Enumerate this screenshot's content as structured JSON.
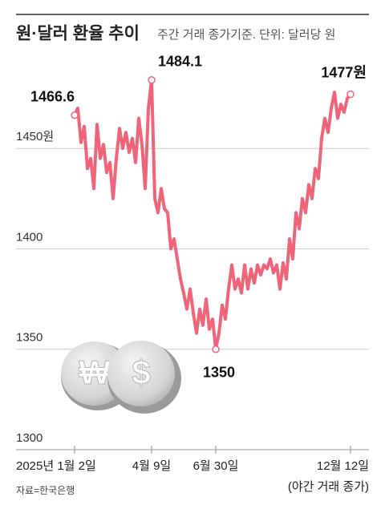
{
  "chart_data": {
    "type": "line",
    "title": "원·달러 환율 추이",
    "subtitle": "주간 거래 종가기준. 단위: 달러당 원",
    "categories": [
      "2025년 1월 2일",
      null,
      null,
      null,
      null,
      null,
      null,
      null,
      null,
      null,
      null,
      null,
      null,
      null,
      null,
      null,
      null,
      null,
      null,
      null,
      null,
      null,
      null,
      null,
      "4월 9일",
      null,
      null,
      null,
      null,
      null,
      null,
      null,
      null,
      null,
      null,
      null,
      null,
      null,
      null,
      null,
      null,
      null,
      null,
      null,
      "6월 30일",
      null,
      null,
      null,
      null,
      null,
      null,
      null,
      null,
      null,
      null,
      null,
      null,
      null,
      null,
      null,
      null,
      null,
      null,
      null,
      null,
      null,
      null,
      null,
      null,
      null,
      null,
      null,
      null,
      null,
      null,
      null,
      null,
      null,
      null,
      null,
      null,
      null,
      null,
      null,
      null,
      null,
      "12월 12일"
    ],
    "x_note": "(야간 거래 종가)",
    "values": [
      1466.6,
      1470,
      1453,
      1461,
      1440,
      1445,
      1430,
      1462,
      1445,
      1452,
      1438,
      1443,
      1425,
      1445,
      1460,
      1450,
      1458,
      1448,
      1455,
      1443,
      1465,
      1452,
      1430,
      1470,
      1484.1,
      1425,
      1418,
      1430,
      1420,
      1418,
      1400,
      1405,
      1395,
      1385,
      1378,
      1370,
      1380,
      1368,
      1358,
      1370,
      1362,
      1375,
      1360,
      1365,
      1350,
      1358,
      1372,
      1365,
      1380,
      1392,
      1380,
      1385,
      1378,
      1392,
      1380,
      1390,
      1383,
      1392,
      1387,
      1392,
      1390,
      1395,
      1388,
      1392,
      1380,
      1393,
      1385,
      1405,
      1395,
      1418,
      1410,
      1425,
      1418,
      1432,
      1425,
      1440,
      1435,
      1455,
      1465,
      1458,
      1470,
      1478,
      1465,
      1472,
      1468,
      1475,
      1477
    ],
    "value_labels": [
      "1466.6",
      null,
      null,
      null,
      null,
      null,
      null,
      null,
      null,
      null,
      null,
      null,
      null,
      null,
      null,
      null,
      null,
      null,
      null,
      null,
      null,
      null,
      null,
      null,
      "1484.1",
      null,
      null,
      null,
      null,
      null,
      null,
      null,
      null,
      null,
      null,
      null,
      null,
      null,
      null,
      null,
      null,
      null,
      null,
      null,
      "1350",
      null,
      null,
      null,
      null,
      null,
      null,
      null,
      null,
      null,
      null,
      null,
      null,
      null,
      null,
      null,
      null,
      null,
      null,
      null,
      null,
      null,
      null,
      null,
      null,
      null,
      null,
      null,
      null,
      null,
      null,
      null,
      null,
      null,
      null,
      null,
      null,
      null,
      null,
      null,
      null,
      null,
      "1477원"
    ],
    "color": "#ef6478",
    "ylim": [
      1300,
      1492
    ],
    "yticks": [
      1300,
      1350,
      1400,
      {
        "value": 1450,
        "label": "1450원"
      }
    ],
    "grid": true,
    "source": "자료=한국은행"
  },
  "illustration": {
    "symbols": [
      "₩",
      "$"
    ]
  }
}
